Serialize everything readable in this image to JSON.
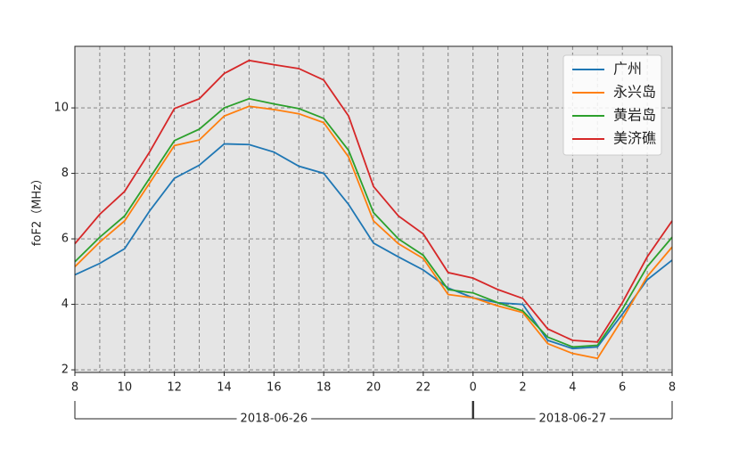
{
  "chart_data": {
    "type": "line",
    "ylabel": "foF2（MHz）",
    "x": [
      8,
      9,
      10,
      11,
      12,
      13,
      14,
      15,
      16,
      17,
      18,
      19,
      20,
      21,
      22,
      23,
      24,
      25,
      26,
      27,
      28,
      29,
      30,
      31,
      32
    ],
    "xlim": [
      8,
      32
    ],
    "xticks": [
      8,
      10,
      12,
      14,
      16,
      18,
      20,
      22,
      {
        "value": 24,
        "label": "0"
      },
      {
        "value": 26,
        "label": "2"
      },
      {
        "value": 28,
        "label": "4"
      },
      {
        "value": 30,
        "label": "6"
      },
      {
        "value": 32,
        "label": "8"
      }
    ],
    "ylim": [
      1.92,
      11.88
    ],
    "yticks": [
      2,
      4,
      6,
      8,
      10
    ],
    "grid": true,
    "legend": "upper right",
    "date_groups": [
      {
        "label": "2018-06-26",
        "from": 8,
        "to": 24
      },
      {
        "label": "2018-06-27",
        "from": 24,
        "to": 32
      }
    ],
    "series": [
      {
        "name": "广州",
        "color": "#1f77b4",
        "values": [
          4.9,
          5.25,
          5.7,
          6.85,
          7.85,
          8.25,
          8.9,
          8.88,
          8.65,
          8.22,
          8.0,
          7.05,
          5.87,
          5.45,
          5.05,
          4.5,
          4.2,
          4.05,
          4.0,
          2.9,
          2.65,
          2.7,
          3.7,
          4.75,
          5.35
        ]
      },
      {
        "name": "永兴岛",
        "color": "#ff7f0e",
        "values": [
          5.15,
          5.9,
          6.55,
          7.7,
          8.85,
          9.02,
          9.75,
          10.05,
          9.95,
          9.82,
          9.55,
          8.5,
          6.55,
          5.85,
          5.4,
          4.3,
          4.2,
          3.95,
          3.75,
          2.8,
          2.5,
          2.35,
          3.55,
          4.85,
          5.75
        ]
      },
      {
        "name": "黄岩岛",
        "color": "#2ca02c",
        "values": [
          5.3,
          6.05,
          6.7,
          7.85,
          9.0,
          9.35,
          10.0,
          10.28,
          10.12,
          9.98,
          9.68,
          8.7,
          6.8,
          6.0,
          5.5,
          4.45,
          4.35,
          4.05,
          3.8,
          3.0,
          2.7,
          2.75,
          3.85,
          5.15,
          6.05
        ]
      },
      {
        "name": "美济礁",
        "color": "#d62728",
        "values": [
          5.85,
          6.75,
          7.45,
          8.65,
          9.98,
          10.28,
          11.05,
          11.45,
          11.32,
          11.2,
          10.85,
          9.75,
          7.6,
          6.7,
          6.15,
          4.97,
          4.8,
          4.45,
          4.18,
          3.25,
          2.9,
          2.85,
          4.05,
          5.45,
          6.55
        ]
      }
    ]
  }
}
